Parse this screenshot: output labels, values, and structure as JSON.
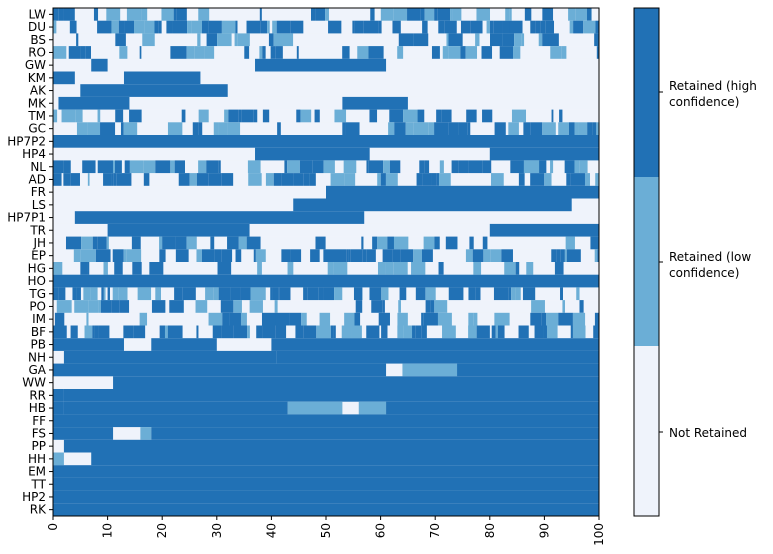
{
  "chart_data": {
    "type": "heatmap",
    "rows": [
      "LW",
      "DU",
      "BS",
      "RO",
      "GW",
      "KM",
      "AK",
      "MK",
      "TM",
      "GC",
      "HP7P2",
      "HP4",
      "NL",
      "AD",
      "FR",
      "LS",
      "HP7P1",
      "TR",
      "JH",
      "EP",
      "HG",
      "HO",
      "TG",
      "PO",
      "IM",
      "BF",
      "PB",
      "NH",
      "GA",
      "WW",
      "RR",
      "HB",
      "FF",
      "FS",
      "PP",
      "HH",
      "EM",
      "TT",
      "HP2",
      "RK"
    ],
    "xlim": [
      0,
      100
    ],
    "xticks": [
      0,
      10,
      20,
      30,
      40,
      50,
      60,
      70,
      80,
      90,
      100
    ],
    "states": [
      "Not Retained",
      "Retained (low confidence)",
      "Retained (high confidence)"
    ],
    "colors": {
      "not_retained": "#eff3fb",
      "retained_low": "#6baed6",
      "retained_high": "#2171b5"
    },
    "colorbar_labels": {
      "high": "Retained (high\nconfidence)",
      "low": "Retained (low\nconfidence)",
      "none": "Not Retained"
    },
    "approx_segments": {
      "GW": [
        [
          0,
          7,
          0
        ],
        [
          7,
          10,
          2
        ],
        [
          10,
          37,
          0
        ],
        [
          37,
          61,
          2
        ],
        [
          61,
          100,
          0
        ]
      ],
      "AK": [
        [
          0,
          5,
          0
        ],
        [
          5,
          32,
          2
        ],
        [
          32,
          100,
          0
        ]
      ],
      "KM": [
        [
          0,
          4,
          2
        ],
        [
          4,
          13,
          0
        ],
        [
          13,
          27,
          2
        ],
        [
          27,
          100,
          0
        ]
      ],
      "MK": [
        [
          0,
          1,
          0
        ],
        [
          1,
          14,
          2
        ],
        [
          14,
          53,
          0
        ],
        [
          53,
          65,
          2
        ],
        [
          65,
          100,
          0
        ]
      ],
      "FR": [
        [
          0,
          50,
          0
        ],
        [
          50,
          100,
          2
        ]
      ],
      "LS": [
        [
          0,
          44,
          0
        ],
        [
          44,
          95,
          2
        ],
        [
          95,
          100,
          0
        ]
      ],
      "HP7P1": [
        [
          0,
          4,
          0
        ],
        [
          4,
          57,
          2
        ],
        [
          57,
          100,
          0
        ]
      ],
      "TR": [
        [
          0,
          10,
          0
        ],
        [
          10,
          36,
          2
        ],
        [
          36,
          80,
          0
        ],
        [
          80,
          100,
          2
        ]
      ],
      "HP7P2": [
        [
          0,
          100,
          2
        ]
      ],
      "HP4": [
        [
          0,
          4,
          0
        ],
        [
          4,
          37,
          0
        ],
        [
          37,
          58,
          2
        ],
        [
          58,
          80,
          0
        ],
        [
          80,
          100,
          2
        ]
      ],
      "HO": [
        [
          0,
          100,
          2
        ]
      ],
      "PB": [
        [
          0,
          13,
          2
        ],
        [
          13,
          18,
          0
        ],
        [
          18,
          30,
          2
        ],
        [
          30,
          40,
          0
        ],
        [
          40,
          100,
          2
        ]
      ],
      "NH": [
        [
          0,
          2,
          0
        ],
        [
          2,
          41,
          2
        ],
        [
          41,
          100,
          2
        ]
      ],
      "GA": [
        [
          0,
          61,
          2
        ],
        [
          61,
          64,
          0
        ],
        [
          64,
          74,
          1
        ],
        [
          74,
          100,
          2
        ]
      ],
      "WW": [
        [
          0,
          3,
          0
        ],
        [
          3,
          11,
          0
        ],
        [
          11,
          100,
          2
        ]
      ],
      "RR": [
        [
          0,
          2,
          2
        ],
        [
          2,
          25,
          2
        ],
        [
          25,
          100,
          2
        ]
      ],
      "HB": [
        [
          0,
          2,
          2
        ],
        [
          2,
          43,
          2
        ],
        [
          43,
          53,
          1
        ],
        [
          53,
          56,
          0
        ],
        [
          56,
          61,
          1
        ],
        [
          61,
          100,
          2
        ]
      ],
      "FF": [
        [
          0,
          100,
          2
        ]
      ],
      "FS": [
        [
          0,
          11,
          2
        ],
        [
          11,
          16,
          0
        ],
        [
          16,
          18,
          1
        ],
        [
          18,
          100,
          2
        ]
      ],
      "PP": [
        [
          0,
          2,
          0
        ],
        [
          2,
          100,
          2
        ]
      ],
      "HH": [
        [
          0,
          2,
          1
        ],
        [
          2,
          7,
          0
        ],
        [
          7,
          100,
          2
        ]
      ],
      "EM": [
        [
          0,
          100,
          2
        ]
      ],
      "TT": [
        [
          0,
          100,
          2
        ]
      ],
      "HP2": [
        [
          0,
          100,
          2
        ]
      ],
      "RK": [
        [
          0,
          100,
          2
        ]
      ]
    }
  }
}
